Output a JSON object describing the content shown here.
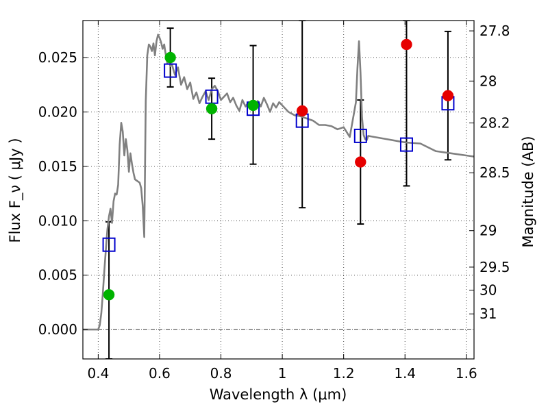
{
  "chart_data": {
    "type": "scatter",
    "title": "",
    "xlabel": "Wavelength  λ (μm)",
    "ylabel_left": "Flux  F_ν  ( μJy )",
    "ylabel_right": "Magnitude (AB)",
    "xlim": [
      0.35,
      1.625
    ],
    "ylim": [
      -0.0027,
      0.0284
    ],
    "grid": true,
    "x_ticks": [
      {
        "value": 0.4,
        "label": "0.4"
      },
      {
        "value": 0.6,
        "label": "0.6"
      },
      {
        "value": 0.8,
        "label": "0.8"
      },
      {
        "value": 1.0,
        "label": "1"
      },
      {
        "value": 1.2,
        "label": "1.2"
      },
      {
        "value": 1.4,
        "label": "1.4"
      },
      {
        "value": 1.6,
        "label": "1.6"
      }
    ],
    "y_ticks": [
      {
        "value": 0.0,
        "label": "0.000"
      },
      {
        "value": 0.005,
        "label": "0.005"
      },
      {
        "value": 0.01,
        "label": "0.010"
      },
      {
        "value": 0.015,
        "label": "0.015"
      },
      {
        "value": 0.02,
        "label": "0.020"
      },
      {
        "value": 0.025,
        "label": "0.025"
      }
    ],
    "right_ticks": [
      {
        "label": "27.8",
        "flux": 0.02745
      },
      {
        "label": "28",
        "flux": 0.02284
      },
      {
        "label": "28.2",
        "flux": 0.01899
      },
      {
        "label": "28.5",
        "flux": 0.01441
      },
      {
        "label": "29",
        "flux": 0.00909
      },
      {
        "label": "29.5",
        "flux": 0.00574
      },
      {
        "label": "30",
        "flux": 0.00362
      },
      {
        "label": "31",
        "flux": 0.00144
      }
    ],
    "series": [
      {
        "kind": "line",
        "color": "#808080",
        "x": [
          0.35,
          0.4,
          0.405,
          0.41,
          0.415,
          0.42,
          0.425,
          0.43,
          0.435,
          0.44,
          0.445,
          0.45,
          0.455,
          0.46,
          0.465,
          0.47,
          0.475,
          0.48,
          0.485,
          0.49,
          0.495,
          0.5,
          0.505,
          0.51,
          0.515,
          0.52,
          0.525,
          0.53,
          0.535,
          0.54,
          0.545,
          0.55,
          0.555,
          0.56,
          0.565,
          0.57,
          0.575,
          0.58,
          0.585,
          0.59,
          0.595,
          0.6,
          0.605,
          0.61,
          0.615,
          0.62,
          0.625,
          0.63,
          0.635,
          0.64,
          0.645,
          0.65,
          0.66,
          0.67,
          0.68,
          0.69,
          0.7,
          0.71,
          0.72,
          0.73,
          0.74,
          0.75,
          0.76,
          0.77,
          0.78,
          0.79,
          0.8,
          0.81,
          0.82,
          0.83,
          0.84,
          0.85,
          0.86,
          0.87,
          0.88,
          0.89,
          0.9,
          0.91,
          0.92,
          0.93,
          0.94,
          0.95,
          0.96,
          0.97,
          0.98,
          0.99,
          1.0,
          1.02,
          1.04,
          1.06,
          1.08,
          1.1,
          1.12,
          1.14,
          1.16,
          1.18,
          1.2,
          1.22,
          1.24,
          1.245,
          1.25,
          1.255,
          1.26,
          1.265,
          1.27,
          1.275,
          1.28,
          1.3,
          1.34,
          1.38,
          1.4,
          1.45,
          1.5,
          1.55,
          1.6,
          1.625
        ],
        "y": [
          0.0,
          0.0,
          0.0004,
          0.0015,
          0.0033,
          0.0054,
          0.0074,
          0.0092,
          0.0104,
          0.0111,
          0.0098,
          0.0118,
          0.0125,
          0.0124,
          0.0133,
          0.017,
          0.019,
          0.0182,
          0.016,
          0.0175,
          0.0165,
          0.0145,
          0.0162,
          0.0152,
          0.0144,
          0.0138,
          0.0137,
          0.0136,
          0.0135,
          0.013,
          0.0114,
          0.0085,
          0.021,
          0.0252,
          0.0262,
          0.026,
          0.0256,
          0.0263,
          0.0252,
          0.0265,
          0.0271,
          0.0268,
          0.0264,
          0.0258,
          0.0262,
          0.0253,
          0.0245,
          0.0248,
          0.0242,
          0.0244,
          0.0239,
          0.0234,
          0.0241,
          0.0225,
          0.0232,
          0.0221,
          0.0227,
          0.0212,
          0.0218,
          0.0208,
          0.0214,
          0.0219,
          0.0211,
          0.0221,
          0.0224,
          0.0219,
          0.0211,
          0.0214,
          0.0217,
          0.0209,
          0.0213,
          0.0206,
          0.0201,
          0.0211,
          0.0205,
          0.0209,
          0.0202,
          0.0206,
          0.021,
          0.0205,
          0.0213,
          0.0207,
          0.02,
          0.0208,
          0.0204,
          0.0209,
          0.0206,
          0.02,
          0.0197,
          0.0196,
          0.0194,
          0.0192,
          0.0188,
          0.0188,
          0.0187,
          0.0184,
          0.0186,
          0.0177,
          0.0209,
          0.024,
          0.0265,
          0.0236,
          0.0195,
          0.0179,
          0.0175,
          0.0174,
          0.0178,
          0.0177,
          0.0175,
          0.0173,
          0.0172,
          0.0171,
          0.0164,
          0.0162,
          0.016,
          0.0159
        ]
      },
      {
        "kind": "open-square",
        "color": "#0000cc",
        "x": [
          0.435,
          0.635,
          0.77,
          0.905,
          1.065,
          1.255,
          1.405,
          1.54
        ],
        "y": [
          0.0078,
          0.0238,
          0.0214,
          0.0203,
          0.0192,
          0.0178,
          0.017,
          0.0208
        ]
      },
      {
        "kind": "circle",
        "color": "#00b300",
        "x": [
          0.435,
          0.635,
          0.77,
          0.905
        ],
        "y": [
          0.0032,
          0.025,
          0.0203,
          0.0206
        ]
      },
      {
        "kind": "circle",
        "color": "#e60000",
        "x": [
          1.065,
          1.255,
          1.405,
          1.54
        ],
        "y": [
          0.0201,
          0.0154,
          0.0262,
          0.0215
        ]
      }
    ],
    "error_bars": [
      {
        "x": 0.435,
        "y_low": -0.0027,
        "y_high": 0.0099
      },
      {
        "x": 0.635,
        "y_low": 0.0223,
        "y_high": 0.0277
      },
      {
        "x": 0.77,
        "y_low": 0.0175,
        "y_high": 0.0231
      },
      {
        "x": 0.905,
        "y_low": 0.0152,
        "y_high": 0.0261
      },
      {
        "x": 1.065,
        "y_low": 0.0112,
        "y_high": 0.0284
      },
      {
        "x": 1.255,
        "y_low": 0.0097,
        "y_high": 0.0211
      },
      {
        "x": 1.405,
        "y_low": 0.0132,
        "y_high": 0.0284
      },
      {
        "x": 1.54,
        "y_low": 0.0156,
        "y_high": 0.0274
      }
    ]
  }
}
